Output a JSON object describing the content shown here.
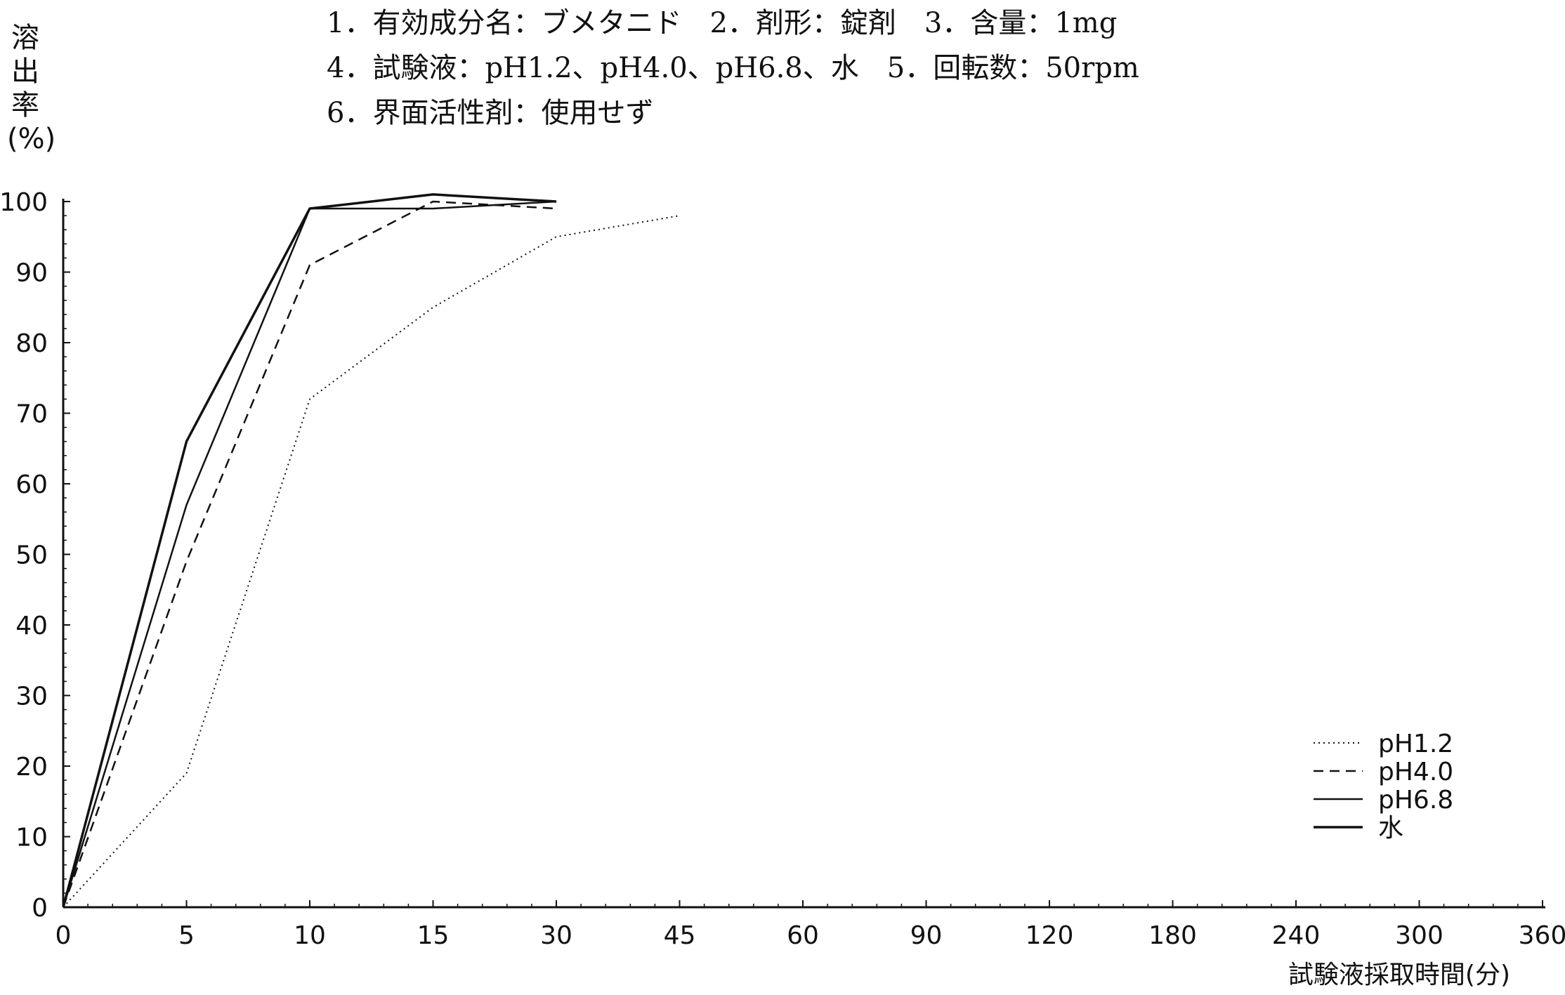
{
  "header": {
    "line1": "1．有効成分名：ブメタニド　2．剤形：錠剤　3．含量：1mg",
    "line2": "4．試験液：pH1.2、pH4.0、pH6.8、水　5．回転数：50rpm",
    "line3": "6．界面活性剤：使用せず"
  },
  "chart_data": {
    "type": "line",
    "title": "",
    "xlabel": "試験液採取時間(分)",
    "ylabel": "溶出率(%)",
    "ylabel_chars": [
      "溶",
      "出",
      "率",
      "(%)"
    ],
    "x_ticks": [
      "0",
      "5",
      "10",
      "15",
      "30",
      "45",
      "60",
      "90",
      "120",
      "180",
      "240",
      "300",
      "360"
    ],
    "y_ticks": [
      "0",
      "10",
      "20",
      "30",
      "40",
      "50",
      "60",
      "70",
      "80",
      "90",
      "100"
    ],
    "ylim": [
      0,
      100
    ],
    "grid": false,
    "legend_position": "bottom-right",
    "series": [
      {
        "name": "pH1.2",
        "style": "dotted",
        "x": [
          0,
          5,
          10,
          15,
          30,
          45
        ],
        "y": [
          0,
          19,
          72,
          85,
          95,
          98
        ]
      },
      {
        "name": "pH4.0",
        "style": "dashed",
        "x": [
          0,
          5,
          10,
          15,
          30
        ],
        "y": [
          0,
          49,
          91,
          100,
          99
        ]
      },
      {
        "name": "pH6.8",
        "style": "solid",
        "x": [
          0,
          5,
          10,
          15,
          30
        ],
        "y": [
          0,
          57,
          99,
          99,
          100
        ]
      },
      {
        "name": "水",
        "style": "solid-thick",
        "x": [
          0,
          5,
          10,
          15,
          30
        ],
        "y": [
          0,
          66,
          99,
          101,
          100
        ]
      }
    ],
    "colors": {
      "line": "#111111",
      "background": "#ffffff"
    }
  }
}
